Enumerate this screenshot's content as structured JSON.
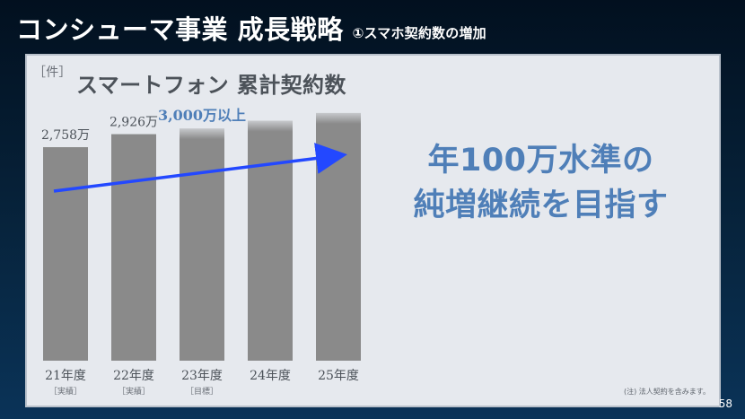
{
  "slide": {
    "title": "コンシューマ事業 成長戦略",
    "subtitle": "①スマホ契約数の増加",
    "page_number": "58",
    "background_colors": [
      "#02101f",
      "#0a3358"
    ],
    "text_color": "#ffffff"
  },
  "panel": {
    "unit_label": "［件］",
    "title": "スマートフォン 累計契約数",
    "message_line1": "年100万水準の",
    "message_line2": "純増継続を目指す",
    "note": "(注) 法人契約を含みます。",
    "message_color": "#4f7fb8",
    "bar_color": "#8a8a8a",
    "arrow_color": "#2348ff"
  },
  "chart_data": {
    "type": "bar",
    "title": "スマートフォン 累計契約数",
    "unit": "［件］",
    "categories": [
      "21年度",
      "22年度",
      "23年度",
      "24年度",
      "25年度"
    ],
    "category_subtitles": [
      "［実績］",
      "［実績］",
      "［目標］",
      "",
      ""
    ],
    "values": [
      27580000,
      29260000,
      30000000,
      31000000,
      32000000
    ],
    "value_labels": [
      "2,758万",
      "2,926万",
      "",
      "",
      ""
    ],
    "highlight_text": "3,000万以上",
    "series": [
      {
        "values": [
          27580000,
          29260000,
          30000000,
          31000000,
          32000000
        ]
      }
    ],
    "ylim": [
      0,
      35000000
    ],
    "grid": false,
    "legend": "none",
    "annotations": [
      {
        "type": "trend-arrow",
        "from": "21年度",
        "to": "25年度"
      }
    ]
  }
}
